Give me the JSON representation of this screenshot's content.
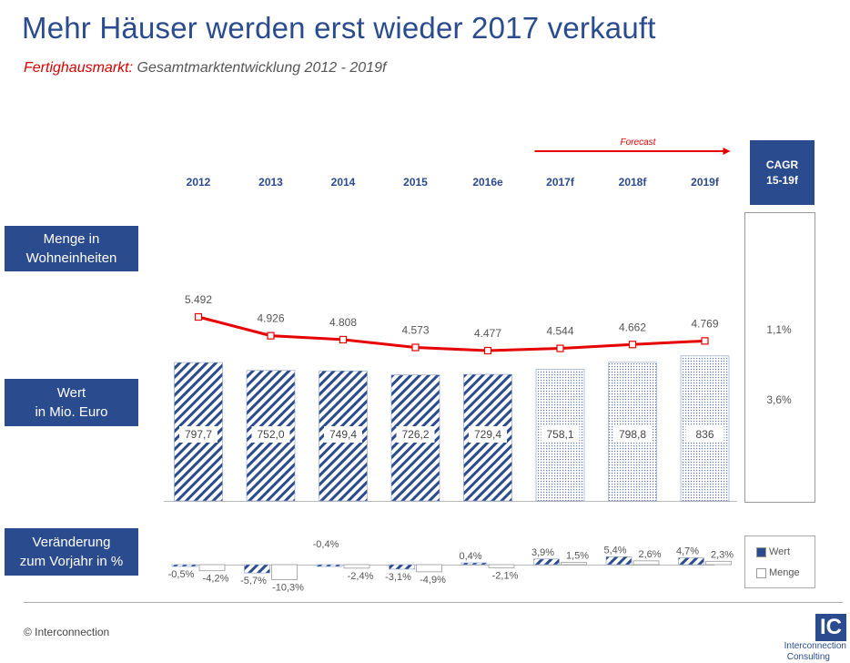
{
  "header": {
    "title": "Mehr Häuser werden erst wieder 2017 verkauft",
    "subtitle_highlight": "Fertighausmarkt:",
    "subtitle_rest": " Gesamtmarktentwicklung 2012 - 2019f"
  },
  "row_labels": {
    "menge": [
      "Menge in",
      "Wohneinheiten"
    ],
    "wert": [
      "Wert",
      "in Mio. Euro"
    ],
    "change": [
      "Veränderung",
      "zum Vorjahr in %"
    ]
  },
  "forecast_label": "Forecast",
  "cagr": {
    "header": [
      "CAGR",
      "15-19f"
    ],
    "menge": "1,1%",
    "wert": "3,6%"
  },
  "legend": {
    "wert": "Wert",
    "menge": "Menge"
  },
  "footer": {
    "copyright": "© Interconnection",
    "logo_mark": "IC",
    "logo_line1": "Interconnection",
    "logo_line2": "Consulting"
  },
  "colors": {
    "brand": "#2a4b8d",
    "line": "#e60000",
    "red_text": "#d60000"
  },
  "chart_data": {
    "type": "bar",
    "categories": [
      "2012",
      "2013",
      "2014",
      "2015",
      "2016e",
      "2017f",
      "2018f",
      "2019f"
    ],
    "forecast_from_index": 5,
    "series": [
      {
        "name": "Wert",
        "values": [
          797.7,
          752.0,
          749.4,
          726.2,
          729.4,
          758.1,
          798.8,
          836
        ],
        "labels": [
          "797,7",
          "752,0",
          "749,4",
          "726,2",
          "729,4",
          "758,1",
          "798,8",
          "836"
        ]
      },
      {
        "name": "Menge",
        "type": "line",
        "values": [
          5492,
          4926,
          4808,
          4573,
          4477,
          4544,
          4662,
          4769
        ],
        "labels": [
          "5.492",
          "4.926",
          "4.808",
          "4.573",
          "4.477",
          "4.544",
          "4.662",
          "4.769"
        ]
      }
    ],
    "changes": {
      "wert": [
        -0.5,
        -5.7,
        -0.4,
        -3.1,
        0.4,
        3.9,
        5.4,
        4.7
      ],
      "wert_labels": [
        "-0,5%",
        "-5,7%",
        "-0,4%",
        "-3,1%",
        "0,4%",
        "3,9%",
        "5,4%",
        "4,7%"
      ],
      "menge": [
        -4.2,
        -10.3,
        -2.4,
        -4.9,
        -2.1,
        1.5,
        2.6,
        2.3
      ],
      "menge_labels": [
        "-4,2%",
        "-10,3%",
        "-2,4%",
        "-4,9%",
        "-2,1%",
        "1,5%",
        "2,6%",
        "2,3%"
      ]
    }
  }
}
